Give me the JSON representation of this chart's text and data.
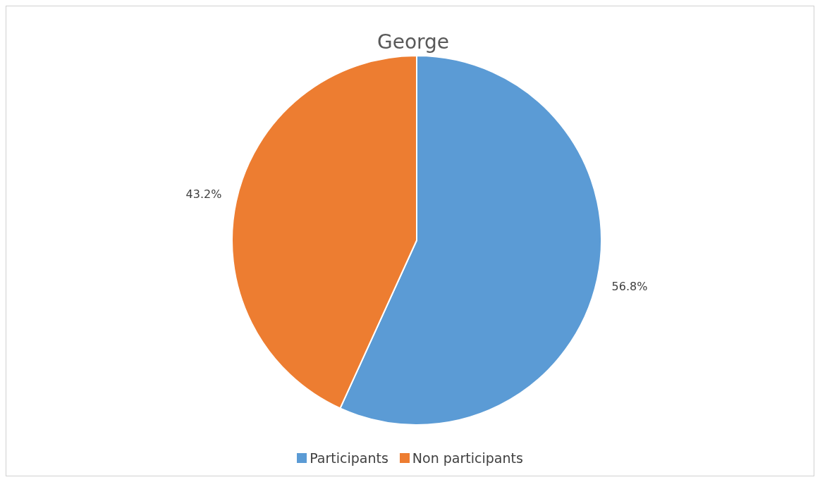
{
  "chart_data": {
    "type": "pie",
    "title": "George",
    "categories": [
      "Participants",
      "Non participants"
    ],
    "values": [
      56.8,
      43.2
    ],
    "colors": [
      "#5b9bd5",
      "#ed7d31"
    ],
    "value_labels": [
      "56.8%",
      "43.2%"
    ],
    "legend": "bottom"
  }
}
